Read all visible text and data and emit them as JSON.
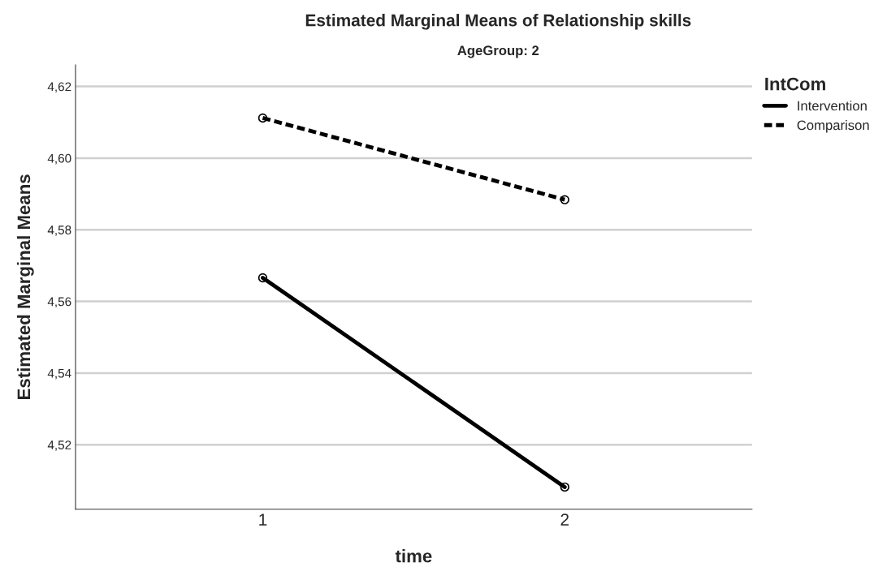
{
  "chart_data": {
    "type": "line",
    "title": "Estimated Marginal Means of Relationship skills",
    "subtitle": "AgeGroup: 2",
    "xlabel": "time",
    "ylabel": "Estimated Marginal Means",
    "legend_title": "IntCom",
    "categories": [
      "1",
      "2"
    ],
    "series": [
      {
        "name": "Intervention",
        "color": "#000000",
        "values": [
          4.5666,
          4.5082
        ],
        "line_style": "solid"
      },
      {
        "name": "Comparison",
        "color": "#000000",
        "values": [
          4.6112,
          4.5884
        ],
        "line_style": "dashed"
      }
    ],
    "ylim": [
      4.502,
      4.626
    ],
    "yticks": [
      {
        "value": 4.52,
        "label": "4,52"
      },
      {
        "value": 4.54,
        "label": "4,54"
      },
      {
        "value": 4.56,
        "label": "4,56"
      },
      {
        "value": 4.58,
        "label": "4,58"
      },
      {
        "value": 4.6,
        "label": "4,60"
      },
      {
        "value": 4.62,
        "label": "4,62"
      }
    ],
    "grid": "y",
    "legend": "top right",
    "marker": "circle"
  }
}
